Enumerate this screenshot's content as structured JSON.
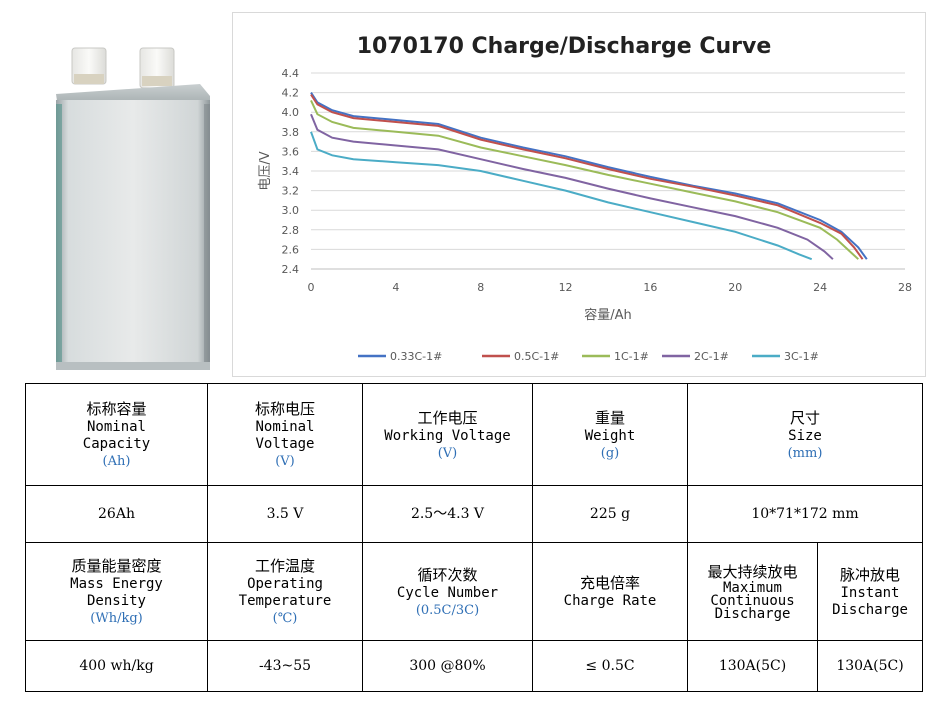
{
  "product_image": {
    "icon": "pouch-battery-cell-image"
  },
  "chart_data": {
    "type": "line",
    "title": "1070170 Charge/Discharge Curve",
    "xlabel": "容量/Ah",
    "ylabel": "电压/V",
    "xlim": [
      0,
      28
    ],
    "ylim": [
      2.4,
      4.4
    ],
    "xticks": [
      "0",
      "4",
      "8",
      "12",
      "16",
      "20",
      "24",
      "28"
    ],
    "yticks": [
      "2.4",
      "2.6",
      "2.8",
      "3.0",
      "3.2",
      "3.4",
      "3.6",
      "3.8",
      "4.0",
      "4.2",
      "4.4"
    ],
    "grid": true,
    "legend": "bottom",
    "series": [
      {
        "name": "0.33C-1#",
        "color": "#4472c4",
        "points": [
          [
            0,
            4.2
          ],
          [
            0.3,
            4.1
          ],
          [
            1,
            4.02
          ],
          [
            2,
            3.96
          ],
          [
            4,
            3.92
          ],
          [
            6,
            3.88
          ],
          [
            8,
            3.74
          ],
          [
            10,
            3.64
          ],
          [
            12,
            3.55
          ],
          [
            14,
            3.44
          ],
          [
            16,
            3.34
          ],
          [
            18,
            3.25
          ],
          [
            20,
            3.17
          ],
          [
            22,
            3.07
          ],
          [
            24,
            2.9
          ],
          [
            25,
            2.78
          ],
          [
            25.8,
            2.62
          ],
          [
            26.2,
            2.5
          ]
        ]
      },
      {
        "name": "0.5C-1#",
        "color": "#c0504d",
        "points": [
          [
            0,
            4.18
          ],
          [
            0.3,
            4.08
          ],
          [
            1,
            4.0
          ],
          [
            2,
            3.94
          ],
          [
            4,
            3.9
          ],
          [
            6,
            3.86
          ],
          [
            8,
            3.72
          ],
          [
            10,
            3.62
          ],
          [
            12,
            3.53
          ],
          [
            14,
            3.42
          ],
          [
            16,
            3.32
          ],
          [
            18,
            3.24
          ],
          [
            20,
            3.15
          ],
          [
            22,
            3.05
          ],
          [
            24,
            2.87
          ],
          [
            25,
            2.76
          ],
          [
            25.6,
            2.62
          ],
          [
            26,
            2.5
          ]
        ]
      },
      {
        "name": "1C-1#",
        "color": "#9bbb59",
        "points": [
          [
            0,
            4.12
          ],
          [
            0.3,
            3.98
          ],
          [
            1,
            3.9
          ],
          [
            2,
            3.84
          ],
          [
            4,
            3.8
          ],
          [
            6,
            3.76
          ],
          [
            8,
            3.64
          ],
          [
            10,
            3.55
          ],
          [
            12,
            3.46
          ],
          [
            14,
            3.36
          ],
          [
            16,
            3.27
          ],
          [
            18,
            3.18
          ],
          [
            20,
            3.09
          ],
          [
            22,
            2.98
          ],
          [
            24,
            2.82
          ],
          [
            24.8,
            2.7
          ],
          [
            25.4,
            2.58
          ],
          [
            25.8,
            2.5
          ]
        ]
      },
      {
        "name": "2C-1#",
        "color": "#8064a2",
        "points": [
          [
            0,
            3.98
          ],
          [
            0.3,
            3.82
          ],
          [
            1,
            3.74
          ],
          [
            2,
            3.7
          ],
          [
            4,
            3.66
          ],
          [
            6,
            3.62
          ],
          [
            8,
            3.52
          ],
          [
            10,
            3.42
          ],
          [
            12,
            3.33
          ],
          [
            14,
            3.22
          ],
          [
            16,
            3.12
          ],
          [
            18,
            3.03
          ],
          [
            20,
            2.94
          ],
          [
            22,
            2.82
          ],
          [
            23.4,
            2.7
          ],
          [
            24.2,
            2.58
          ],
          [
            24.6,
            2.5
          ]
        ]
      },
      {
        "name": "3C-1#",
        "color": "#4bacc6",
        "points": [
          [
            0,
            3.8
          ],
          [
            0.3,
            3.62
          ],
          [
            1,
            3.56
          ],
          [
            2,
            3.52
          ],
          [
            4,
            3.49
          ],
          [
            6,
            3.46
          ],
          [
            8,
            3.4
          ],
          [
            10,
            3.3
          ],
          [
            12,
            3.2
          ],
          [
            14,
            3.08
          ],
          [
            16,
            2.98
          ],
          [
            18,
            2.88
          ],
          [
            20,
            2.78
          ],
          [
            22,
            2.64
          ],
          [
            23,
            2.55
          ],
          [
            23.6,
            2.5
          ]
        ]
      }
    ]
  },
  "table": {
    "row1": [
      {
        "zh": "标称容量",
        "en": [
          "Nominal",
          "Capacity"
        ],
        "unit": "(Ah)"
      },
      {
        "zh": "标称电压",
        "en": [
          "Nominal",
          "Voltage"
        ],
        "unit": "(V)"
      },
      {
        "zh": "工作电压",
        "en": [
          "Working Voltage"
        ],
        "unit": "(V)"
      },
      {
        "zh": "重量",
        "en": [
          "Weight"
        ],
        "unit": "(g)"
      },
      {
        "zh": "尺寸",
        "en": [
          "Size"
        ],
        "unit": "(mm)"
      }
    ],
    "row2": [
      "26Ah",
      "3.5 V",
      "2.5～4.3 V",
      "225 g",
      "10*71*172 mm"
    ],
    "row3": [
      {
        "zh": "质量能量密度",
        "en": [
          "Mass Energy",
          "Density"
        ],
        "unit": "(Wh/kg)"
      },
      {
        "zh": "工作温度",
        "en": [
          "Operating",
          "Temperature"
        ],
        "unit": "(℃)"
      },
      {
        "zh": "循环次数",
        "en": [
          "Cycle Number"
        ],
        "unit": "(0.5C/3C)"
      },
      {
        "zh": "充电倍率",
        "en": [
          "Charge Rate"
        ],
        "unit": ""
      },
      {
        "zh": "最大持续放电",
        "en": [
          "Maximum",
          "Continuous",
          "Discharge"
        ],
        "unit": ""
      },
      {
        "zh": "脉冲放电",
        "en": [
          "Instant",
          "Discharge"
        ],
        "unit": ""
      }
    ],
    "row4": [
      "400 wh/kg",
      "-43~55",
      "300 @80%",
      "≤ 0.5C",
      "130A(5C)",
      "130A(5C)"
    ]
  }
}
